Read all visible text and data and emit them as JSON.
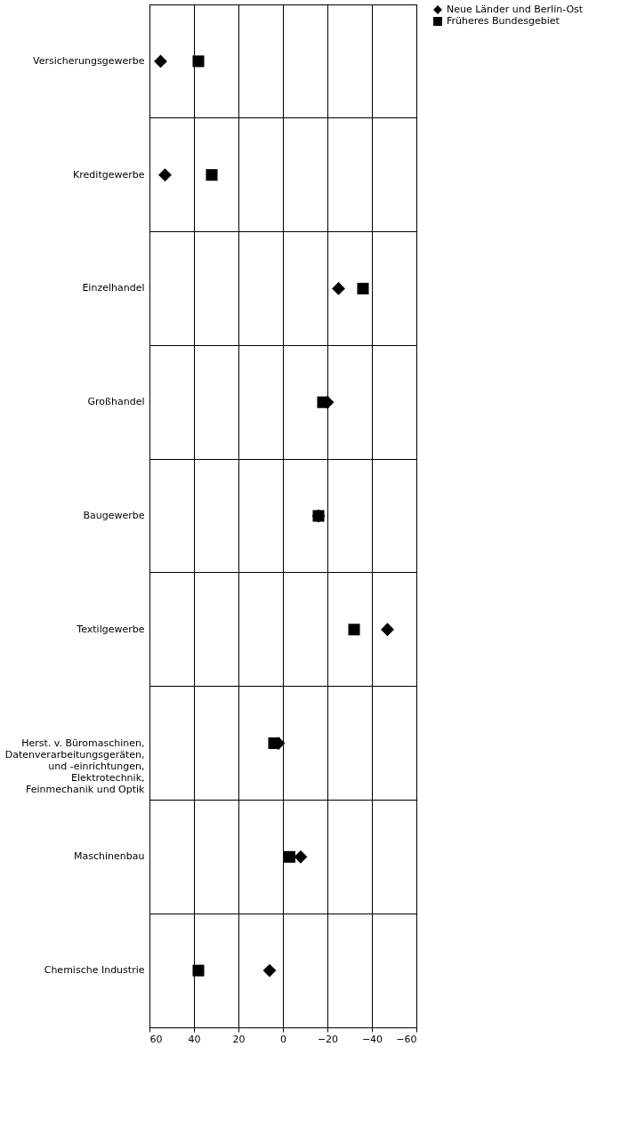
{
  "chart_data": {
    "type": "scatter",
    "orientation": "horizontal",
    "categories": [
      "Versicherungsgewerbe",
      "Kreditgewerbe",
      "Einzelhandel",
      "Großhandel",
      "Baugewerbe",
      "Textilgewerbe",
      "Herst. v. Büromaschinen, Datenverarbeitungsgeräten, und -einrichtungen, Elektrotechnik, Feinmechanik und Optik",
      "Maschinenbau",
      "Chemische Industrie"
    ],
    "series": [
      {
        "name": "Neue Länder und Berlin-Ost",
        "color": "#000000",
        "marker": "diamond",
        "values": [
          55,
          53,
          -25,
          -20,
          -16,
          -47,
          2,
          -8,
          6
        ]
      },
      {
        "name": "Früheres Bundesgebiet",
        "color": "#000000",
        "marker": "square",
        "values": [
          38,
          32,
          -36,
          -18,
          -16,
          -32,
          4,
          -3,
          38
        ]
      }
    ],
    "xlim": [
      60,
      -60
    ],
    "xticks": [
      60,
      40,
      20,
      0,
      -20,
      -40,
      -60
    ],
    "grid": true,
    "legend": "right"
  }
}
